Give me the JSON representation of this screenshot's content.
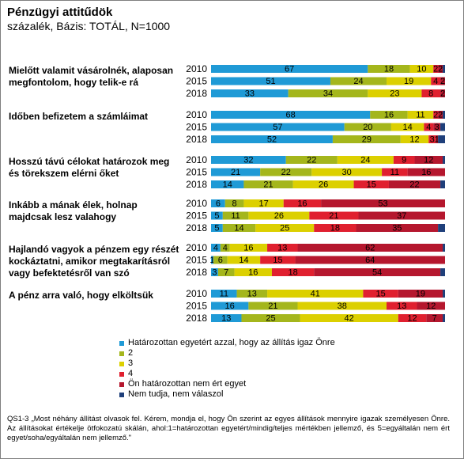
{
  "title": "Pénzügyi attitűdök",
  "subtitle": "százalék, Bázis: TOTÁL, N=1000",
  "footnote": "QS1-3 „Most néhány állítást olvasok fel. Kérem, mondja el, hogy Ön szerint az egyes állítások mennyire igazak személyesen Önre. Az állításokat értékelje ötfokozatú skálán, ahol:1=határozottan egyetért/mindig/teljes mértékben jellemző, és 5=egyáltalán nem ért egyet/soha/egyáltalán nem jellemző.\"",
  "chart_data": {
    "type": "bar",
    "stacked": true,
    "orientation": "horizontal",
    "xlim": [
      0,
      100
    ],
    "grid": false,
    "legend_position": "bottom",
    "series": [
      {
        "name": "Határozottan egyetért azzal, hogy az állítás igaz Önre",
        "color": "#1f9ad6"
      },
      {
        "name": "2",
        "color": "#a4b61c"
      },
      {
        "name": "3",
        "color": "#dcd000"
      },
      {
        "name": "4",
        "color": "#e0202f"
      },
      {
        "name": "Ön határozottan nem ért egyet",
        "color": "#b5172e"
      },
      {
        "name": "Nem tudja, nem válaszol",
        "color": "#1f3f7a"
      }
    ],
    "groups": [
      {
        "statement": [
          "Mielőtt valamit vásárolnék, alaposan",
          "megfontolom, hogy telik-e rá"
        ],
        "rows": [
          {
            "year": "2010",
            "values": [
              67,
              18,
              10,
              2,
              2,
              1
            ]
          },
          {
            "year": "2015",
            "values": [
              51,
              24,
              19,
              4,
              2,
              0
            ]
          },
          {
            "year": "2018",
            "values": [
              33,
              34,
              23,
              8,
              2,
              0
            ]
          }
        ]
      },
      {
        "statement": [
          "Időben befizetem a számláimat"
        ],
        "rows": [
          {
            "year": "2010",
            "values": [
              68,
              16,
              11,
              2,
              2,
              1
            ]
          },
          {
            "year": "2015",
            "values": [
              57,
              20,
              14,
              4,
              3,
              2
            ]
          },
          {
            "year": "2018",
            "values": [
              52,
              29,
              12,
              3,
              1,
              3
            ]
          }
        ]
      },
      {
        "statement": [
          "Hosszú távú célokat határozok meg",
          "és törekszem elérni őket"
        ],
        "rows": [
          {
            "year": "2010",
            "values": [
              32,
              22,
              24,
              9,
              12,
              1
            ]
          },
          {
            "year": "2015",
            "values": [
              21,
              22,
              30,
              11,
              16,
              0
            ]
          },
          {
            "year": "2018",
            "values": [
              14,
              21,
              26,
              15,
              22,
              2
            ]
          }
        ]
      },
      {
        "statement": [
          "Inkább a mának élek, holnap",
          "majdcsak lesz valahogy"
        ],
        "rows": [
          {
            "year": "2010",
            "values": [
              6,
              8,
              17,
              16,
              53,
              0
            ]
          },
          {
            "year": "2015",
            "values": [
              5,
              11,
              26,
              21,
              37,
              0
            ]
          },
          {
            "year": "2018",
            "values": [
              5,
              14,
              25,
              18,
              35,
              3
            ]
          }
        ]
      },
      {
        "statement": [
          "Hajlandó vagyok a pénzem egy részét",
          "kockáztatni, amikor megtakarításról",
          "vagy befektetésről van szó"
        ],
        "rows": [
          {
            "year": "2010",
            "values": [
              4,
              4,
              16,
              13,
              62,
              1
            ]
          },
          {
            "year": "2015",
            "values": [
              1,
              6,
              14,
              15,
              64,
              0
            ]
          },
          {
            "year": "2018",
            "values": [
              3,
              7,
              16,
              18,
              54,
              2
            ]
          }
        ]
      },
      {
        "statement": [
          "A pénz arra való, hogy elköltsük"
        ],
        "rows": [
          {
            "year": "2010",
            "values": [
              11,
              13,
              41,
              15,
              19,
              1
            ]
          },
          {
            "year": "2015",
            "values": [
              16,
              21,
              38,
              13,
              12,
              0
            ]
          },
          {
            "year": "2018",
            "values": [
              13,
              25,
              42,
              12,
              7,
              1
            ]
          }
        ]
      }
    ]
  }
}
